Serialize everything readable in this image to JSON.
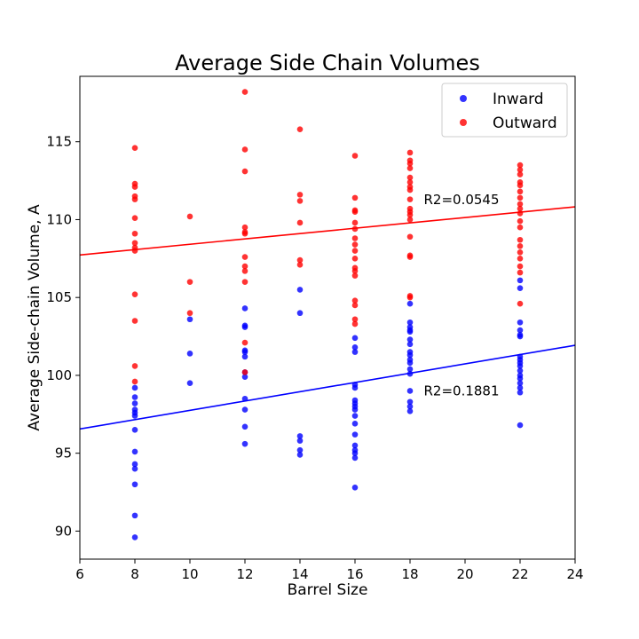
{
  "chart_data": {
    "type": "scatter",
    "title": "Average Side Chain Volumes",
    "xlabel": "Barrel Size",
    "ylabel": "Average Side-chain Volume, A",
    "xlim": [
      6,
      24
    ],
    "ylim": [
      88.2,
      119.2
    ],
    "xticks": [
      6,
      8,
      10,
      12,
      14,
      16,
      18,
      20,
      22,
      24
    ],
    "yticks": [
      90,
      95,
      100,
      105,
      110,
      115
    ],
    "grid": false,
    "legend_position": "top-right",
    "series": [
      {
        "name": "Inward",
        "color": "#0000ff",
        "points": [
          [
            8,
            99.2
          ],
          [
            8,
            98.6
          ],
          [
            8,
            98.2
          ],
          [
            8,
            97.8
          ],
          [
            8,
            97.6
          ],
          [
            8,
            97.4
          ],
          [
            8,
            96.5
          ],
          [
            8,
            95.1
          ],
          [
            8,
            94.3
          ],
          [
            8,
            94.0
          ],
          [
            8,
            93.0
          ],
          [
            8,
            91.0
          ],
          [
            8,
            89.6
          ],
          [
            10,
            103.6
          ],
          [
            10,
            101.4
          ],
          [
            10,
            99.5
          ],
          [
            12,
            104.3
          ],
          [
            12,
            103.2
          ],
          [
            12,
            103.1
          ],
          [
            12,
            101.6
          ],
          [
            12,
            101.5
          ],
          [
            12,
            101.2
          ],
          [
            12,
            100.2
          ],
          [
            12,
            99.9
          ],
          [
            12,
            98.5
          ],
          [
            12,
            97.8
          ],
          [
            12,
            96.7
          ],
          [
            12,
            95.6
          ],
          [
            14,
            105.5
          ],
          [
            14,
            104.0
          ],
          [
            14,
            96.1
          ],
          [
            14,
            95.8
          ],
          [
            14,
            95.2
          ],
          [
            14,
            94.9
          ],
          [
            16,
            102.4
          ],
          [
            16,
            101.8
          ],
          [
            16,
            101.5
          ],
          [
            16,
            99.4
          ],
          [
            16,
            99.2
          ],
          [
            16,
            98.4
          ],
          [
            16,
            98.2
          ],
          [
            16,
            98.0
          ],
          [
            16,
            97.8
          ],
          [
            16,
            97.4
          ],
          [
            16,
            96.9
          ],
          [
            16,
            96.2
          ],
          [
            16,
            95.5
          ],
          [
            16,
            95.2
          ],
          [
            16,
            95.0
          ],
          [
            16,
            94.7
          ],
          [
            16,
            92.8
          ],
          [
            18,
            104.6
          ],
          [
            18,
            103.4
          ],
          [
            18,
            103.1
          ],
          [
            18,
            102.9
          ],
          [
            18,
            102.8
          ],
          [
            18,
            102.3
          ],
          [
            18,
            102.0
          ],
          [
            18,
            101.5
          ],
          [
            18,
            101.3
          ],
          [
            18,
            101.0
          ],
          [
            18,
            100.8
          ],
          [
            18,
            100.4
          ],
          [
            18,
            100.1
          ],
          [
            18,
            99.0
          ],
          [
            18,
            98.3
          ],
          [
            18,
            98.0
          ],
          [
            18,
            97.7
          ],
          [
            22,
            106.1
          ],
          [
            22,
            105.6
          ],
          [
            22,
            103.4
          ],
          [
            22,
            102.9
          ],
          [
            22,
            102.6
          ],
          [
            22,
            102.5
          ],
          [
            22,
            101.2
          ],
          [
            22,
            101.0
          ],
          [
            22,
            100.8
          ],
          [
            22,
            100.6
          ],
          [
            22,
            100.3
          ],
          [
            22,
            100.0
          ],
          [
            22,
            99.8
          ],
          [
            22,
            99.5
          ],
          [
            22,
            99.2
          ],
          [
            22,
            98.9
          ],
          [
            22,
            96.8
          ]
        ],
        "trendline": {
          "x": [
            6,
            24
          ],
          "y": [
            96.56,
            101.93
          ],
          "r2_label": "R2=0.1881",
          "label_at": [
            18.5,
            98.7
          ]
        }
      },
      {
        "name": "Outward",
        "color": "#ff0000",
        "points": [
          [
            8,
            114.6
          ],
          [
            8,
            112.3
          ],
          [
            8,
            112.1
          ],
          [
            8,
            111.5
          ],
          [
            8,
            111.3
          ],
          [
            8,
            110.1
          ],
          [
            8,
            109.1
          ],
          [
            8,
            108.5
          ],
          [
            8,
            108.2
          ],
          [
            8,
            108.0
          ],
          [
            8,
            105.2
          ],
          [
            8,
            103.5
          ],
          [
            8,
            100.6
          ],
          [
            8,
            99.6
          ],
          [
            10,
            110.2
          ],
          [
            10,
            106.0
          ],
          [
            10,
            104.0
          ],
          [
            12,
            118.2
          ],
          [
            12,
            114.5
          ],
          [
            12,
            113.1
          ],
          [
            12,
            109.5
          ],
          [
            12,
            109.2
          ],
          [
            12,
            109.1
          ],
          [
            12,
            107.6
          ],
          [
            12,
            107.0
          ],
          [
            12,
            106.7
          ],
          [
            12,
            106.0
          ],
          [
            12,
            102.1
          ],
          [
            12,
            100.2
          ],
          [
            14,
            115.8
          ],
          [
            14,
            111.6
          ],
          [
            14,
            111.2
          ],
          [
            14,
            109.8
          ],
          [
            14,
            107.4
          ],
          [
            14,
            107.1
          ],
          [
            16,
            114.1
          ],
          [
            16,
            111.4
          ],
          [
            16,
            110.6
          ],
          [
            16,
            110.5
          ],
          [
            16,
            109.8
          ],
          [
            16,
            109.4
          ],
          [
            16,
            108.8
          ],
          [
            16,
            108.4
          ],
          [
            16,
            108.0
          ],
          [
            16,
            107.5
          ],
          [
            16,
            106.9
          ],
          [
            16,
            106.7
          ],
          [
            16,
            106.4
          ],
          [
            16,
            104.8
          ],
          [
            16,
            104.5
          ],
          [
            16,
            103.6
          ],
          [
            16,
            103.3
          ],
          [
            18,
            114.3
          ],
          [
            18,
            113.8
          ],
          [
            18,
            113.6
          ],
          [
            18,
            113.3
          ],
          [
            18,
            112.7
          ],
          [
            18,
            112.4
          ],
          [
            18,
            112.1
          ],
          [
            18,
            111.9
          ],
          [
            18,
            111.3
          ],
          [
            18,
            110.7
          ],
          [
            18,
            110.5
          ],
          [
            18,
            110.3
          ],
          [
            18,
            110.0
          ],
          [
            18,
            108.9
          ],
          [
            18,
            107.7
          ],
          [
            18,
            107.6
          ],
          [
            18,
            105.1
          ],
          [
            18,
            105.0
          ],
          [
            22,
            113.5
          ],
          [
            22,
            113.2
          ],
          [
            22,
            112.9
          ],
          [
            22,
            112.4
          ],
          [
            22,
            112.2
          ],
          [
            22,
            111.8
          ],
          [
            22,
            111.4
          ],
          [
            22,
            111.0
          ],
          [
            22,
            110.7
          ],
          [
            22,
            110.4
          ],
          [
            22,
            109.9
          ],
          [
            22,
            109.5
          ],
          [
            22,
            108.7
          ],
          [
            22,
            108.3
          ],
          [
            22,
            107.9
          ],
          [
            22,
            107.5
          ],
          [
            22,
            107.0
          ],
          [
            22,
            106.6
          ],
          [
            22,
            104.6
          ]
        ],
        "trendline": {
          "x": [
            6,
            24
          ],
          "y": [
            107.73,
            110.82
          ],
          "r2_label": "R2=0.0545",
          "label_at": [
            18.5,
            111.0
          ]
        }
      }
    ]
  }
}
